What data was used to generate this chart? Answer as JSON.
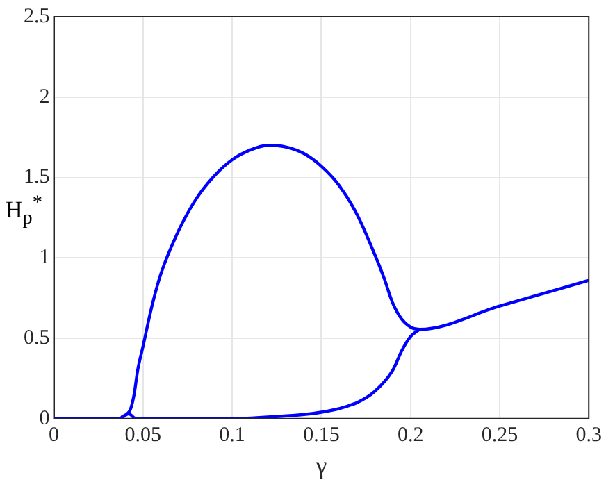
{
  "chart_data": {
    "type": "line",
    "xlabel": "γ",
    "ylabel": "H$_{p}$$^{*}$",
    "xlim": [
      0,
      0.3
    ],
    "ylim": [
      0,
      2.5
    ],
    "xticks": [
      0,
      0.05,
      0.1,
      0.15,
      0.2,
      0.25,
      0.3
    ],
    "yticks": [
      0,
      0.5,
      1,
      1.5,
      2,
      2.5
    ],
    "grid": true,
    "legend": false,
    "marker": "none",
    "line_style": "solid",
    "series": [
      {
        "color": "#0000ff",
        "x": [
          0,
          0.02,
          0.035,
          0.04,
          0.043,
          0.045,
          0.047,
          0.05,
          0.055,
          0.06,
          0.07,
          0.08,
          0.09,
          0.1,
          0.11,
          0.12,
          0.13,
          0.14,
          0.15,
          0.16,
          0.17,
          0.18,
          0.185,
          0.19,
          0.195,
          0.2,
          0.205,
          0.25,
          0.3
        ],
        "values": [
          0,
          0,
          0,
          0.02,
          0.06,
          0.15,
          0.3,
          0.45,
          0.7,
          0.9,
          1.17,
          1.37,
          1.51,
          1.61,
          1.67,
          1.7,
          1.69,
          1.65,
          1.57,
          1.45,
          1.27,
          1.02,
          0.88,
          0.72,
          0.62,
          0.57,
          0.555,
          0.7,
          0.86
        ]
      },
      {
        "color": "#0000ff",
        "x": [
          0.038,
          0.042,
          0.046,
          0.07,
          0.1,
          0.12,
          0.15,
          0.17,
          0.18,
          0.19,
          0.195,
          0.2,
          0.205
        ],
        "values": [
          0.01,
          0.03,
          0,
          0,
          0,
          0.01,
          0.04,
          0.1,
          0.17,
          0.3,
          0.42,
          0.51,
          0.555
        ]
      }
    ]
  }
}
